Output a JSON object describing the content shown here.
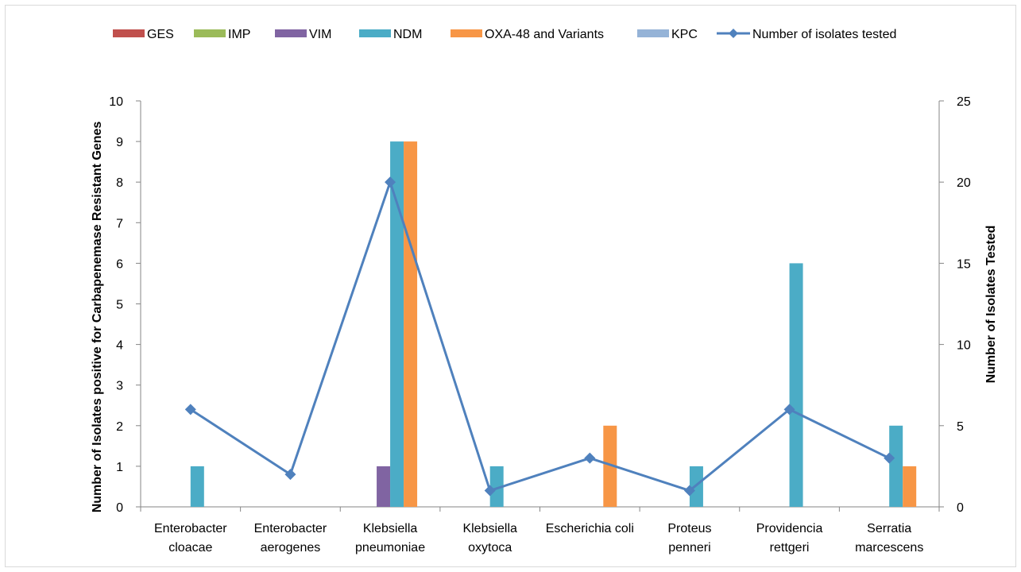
{
  "chart_data": {
    "type": "bar",
    "categories": [
      [
        "Enterobacter",
        "cloacae"
      ],
      [
        "Enterobacter",
        "aerogenes"
      ],
      [
        "Klebsiella",
        "pneumoniae"
      ],
      [
        "Klebsiella",
        "oxytoca"
      ],
      [
        "Escherichia coli"
      ],
      [
        "Proteus",
        "penneri"
      ],
      [
        "Providencia",
        "rettgeri"
      ],
      [
        "Serratia",
        "marcescens"
      ]
    ],
    "series": [
      {
        "name": "GES",
        "color": "#c0504d",
        "values": [
          0,
          0,
          0,
          0,
          0,
          0,
          0,
          0
        ]
      },
      {
        "name": "IMP",
        "color": "#9bbb59",
        "values": [
          0,
          0,
          0,
          0,
          0,
          0,
          0,
          0
        ]
      },
      {
        "name": "VIM",
        "color": "#8064a2",
        "values": [
          0,
          0,
          1,
          0,
          0,
          0,
          0,
          0
        ]
      },
      {
        "name": "NDM",
        "color": "#4bacc6",
        "values": [
          1,
          0,
          9,
          1,
          0,
          1,
          6,
          2
        ]
      },
      {
        "name": "OXA-48 and Variants",
        "color": "#f79646",
        "values": [
          0,
          0,
          9,
          0,
          2,
          0,
          0,
          1
        ]
      },
      {
        "name": "KPC",
        "color": "#95b3d7",
        "values": [
          0,
          0,
          0,
          0,
          0,
          0,
          0,
          0
        ]
      }
    ],
    "line_series": {
      "name": "Number of isolates tested",
      "color": "#4f81bd",
      "axis": "secondary",
      "marker": "diamond",
      "values": [
        6,
        2,
        20,
        1,
        3,
        1,
        6,
        3
      ]
    },
    "ylabel": "Number of Isolates positive for Carbapenemase Resistant Genes",
    "y2label": "Number of Isolates Tested",
    "ylim": [
      0,
      10
    ],
    "yticks": [
      "0",
      "1",
      "2",
      "3",
      "4",
      "5",
      "6",
      "7",
      "8",
      "9",
      "10"
    ],
    "y2lim": [
      0,
      25
    ],
    "y2ticks": [
      "0",
      "5",
      "10",
      "15",
      "20",
      "25"
    ],
    "grid": false,
    "legend_position": "top"
  }
}
